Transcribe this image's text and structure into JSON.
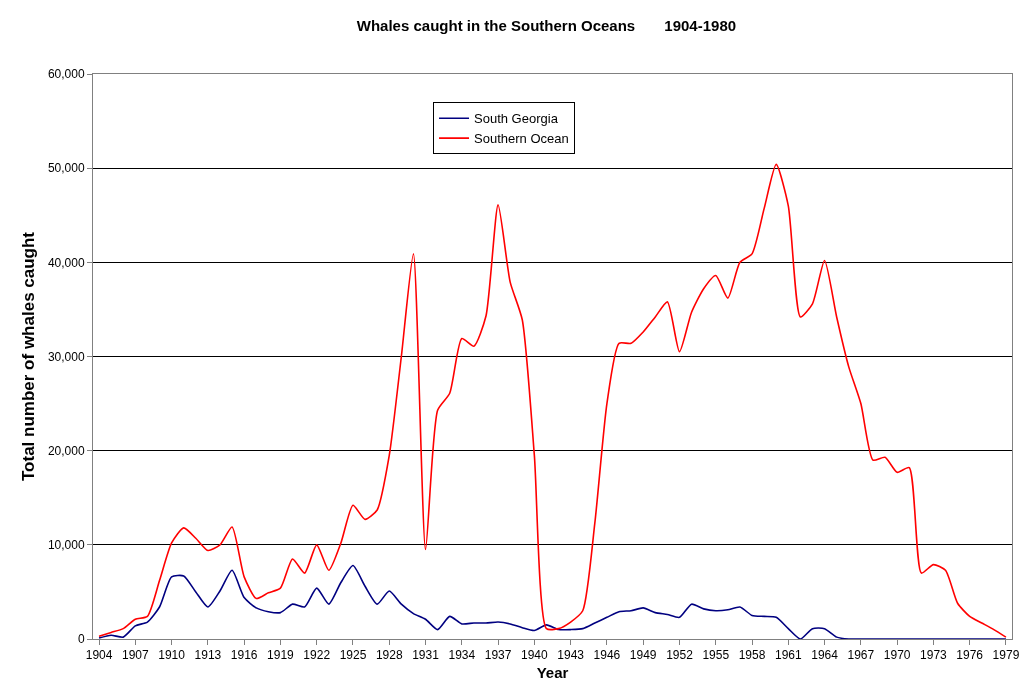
{
  "chart_data": {
    "type": "line",
    "title": "Whales caught in the Southern Oceans       1904-1980",
    "xlabel": "Year",
    "ylabel": "Total number of whales caught",
    "x": [
      1904,
      1905,
      1906,
      1907,
      1908,
      1909,
      1910,
      1911,
      1912,
      1913,
      1914,
      1915,
      1916,
      1917,
      1918,
      1919,
      1920,
      1921,
      1922,
      1923,
      1924,
      1925,
      1926,
      1927,
      1928,
      1929,
      1930,
      1931,
      1932,
      1933,
      1934,
      1935,
      1936,
      1937,
      1938,
      1939,
      1940,
      1941,
      1942,
      1943,
      1944,
      1945,
      1946,
      1947,
      1948,
      1949,
      1950,
      1951,
      1952,
      1953,
      1954,
      1955,
      1956,
      1957,
      1958,
      1959,
      1960,
      1961,
      1962,
      1963,
      1964,
      1965,
      1966,
      1967,
      1968,
      1969,
      1970,
      1971,
      1972,
      1973,
      1974,
      1975,
      1976,
      1977,
      1978,
      1979
    ],
    "series": [
      {
        "name": "South Georgia",
        "color": "#000080",
        "values": [
          100,
          400,
          200,
          1400,
          1800,
          3400,
          6600,
          6700,
          5000,
          3400,
          5100,
          7300,
          4400,
          3300,
          2900,
          2800,
          3700,
          3400,
          5400,
          3700,
          6000,
          7800,
          5600,
          3700,
          5100,
          3700,
          2700,
          2100,
          1000,
          2400,
          1600,
          1700,
          1700,
          1800,
          1600,
          1200,
          900,
          1500,
          1000,
          1000,
          1100,
          1700,
          2300,
          2900,
          3000,
          3300,
          2800,
          2600,
          2300,
          3700,
          3200,
          3000,
          3100,
          3400,
          2500,
          2400,
          2300,
          1100,
          0,
          1100,
          1100,
          200,
          0,
          0,
          0,
          0,
          0,
          0,
          0,
          0,
          0,
          0,
          0,
          0,
          0,
          0
        ]
      },
      {
        "name": "Southern Ocean",
        "color": "#ff0000",
        "values": [
          300,
          700,
          1100,
          2100,
          2400,
          6200,
          10200,
          11800,
          10700,
          9400,
          10000,
          11900,
          6600,
          4300,
          4900,
          5400,
          8500,
          7000,
          10000,
          7300,
          10200,
          14200,
          12700,
          13700,
          19500,
          30000,
          40900,
          9500,
          24300,
          26100,
          31900,
          31100,
          34300,
          46100,
          37900,
          33900,
          19500,
          1100,
          1100,
          1800,
          3000,
          12300,
          25000,
          31400,
          31400,
          32600,
          34200,
          35800,
          30500,
          34700,
          37200,
          38600,
          36200,
          40000,
          40900,
          45700,
          50400,
          46000,
          34200,
          35600,
          40200,
          34200,
          28900,
          25000,
          19000,
          19300,
          17700,
          18200,
          7000,
          7900,
          7300,
          3800,
          2400,
          1700,
          1000,
          200
        ]
      }
    ],
    "xlim": [
      1903.5,
      1979.5
    ],
    "xticks": [
      1904,
      1907,
      1910,
      1913,
      1916,
      1919,
      1922,
      1925,
      1928,
      1931,
      1934,
      1937,
      1940,
      1943,
      1946,
      1949,
      1952,
      1955,
      1958,
      1961,
      1964,
      1967,
      1970,
      1973,
      1976,
      1979
    ],
    "ylim": [
      0,
      60000
    ],
    "yticks": [
      {
        "value": 0,
        "label": "0"
      },
      {
        "value": 10000,
        "label": "10,000"
      },
      {
        "value": 20000,
        "label": "20,000"
      },
      {
        "value": 30000,
        "label": "30,000"
      },
      {
        "value": 40000,
        "label": "40,000"
      },
      {
        "value": 50000,
        "label": "50,000"
      },
      {
        "value": 60000,
        "label": "60,000"
      }
    ],
    "grid": "y",
    "legend": "top",
    "marker": "none",
    "line_style": "solid"
  }
}
